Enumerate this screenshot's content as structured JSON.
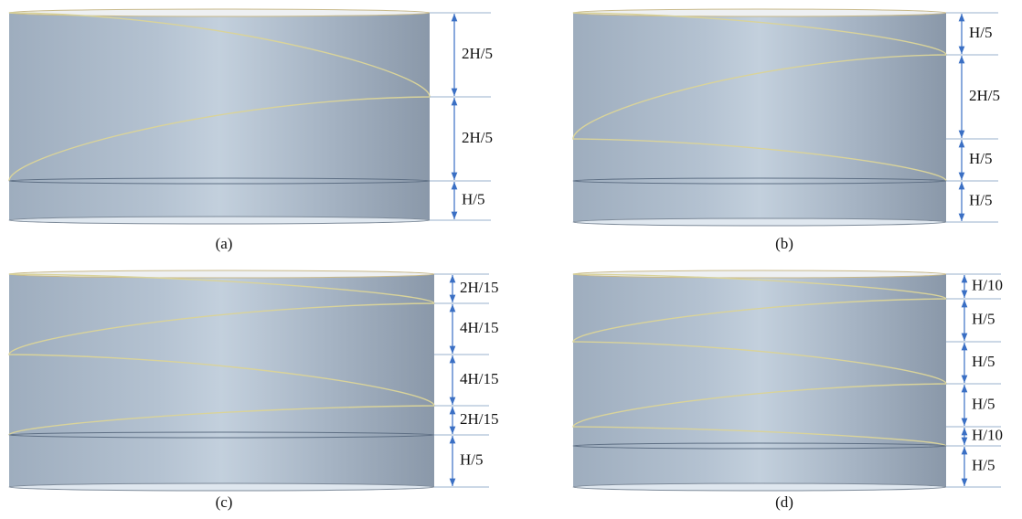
{
  "panels": [
    {
      "caption": "(a)",
      "dimensions": [
        "2H/5",
        "2H/5",
        "H/5"
      ]
    },
    {
      "caption": "(b)",
      "dimensions": [
        "H/5",
        "2H/5",
        "H/5",
        "H/5"
      ]
    },
    {
      "caption": "(c)",
      "dimensions": [
        "2H/15",
        "4H/15",
        "4H/15",
        "2H/15",
        "H/5"
      ]
    },
    {
      "caption": "(d)",
      "dimensions": [
        "H/10",
        "H/5",
        "H/5",
        "H/5",
        "H/10",
        "H/5"
      ]
    }
  ]
}
